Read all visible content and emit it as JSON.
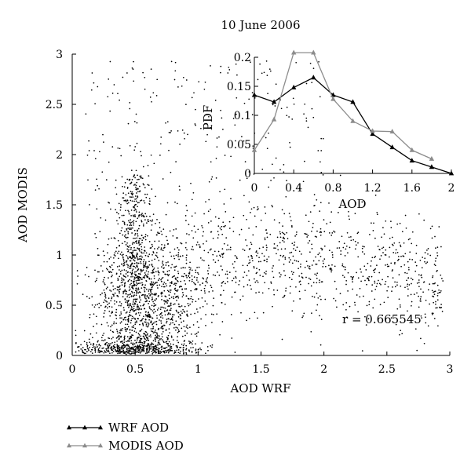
{
  "chart_data": [
    {
      "type": "scatter",
      "title": "10 June 2006",
      "xlabel": "AOD WRF",
      "ylabel": "AOD MODIS",
      "xlim": [
        0,
        3
      ],
      "ylim": [
        0,
        3
      ],
      "xticks": [
        "0",
        "0.5",
        "1",
        "1.5",
        "2",
        "2.5",
        "3"
      ],
      "yticks": [
        "0",
        "0.5",
        "1",
        "1.5",
        "2",
        "2.5",
        "3"
      ],
      "annotation": "r = 0.665545",
      "point_color": "#000000",
      "grid": false,
      "n_points": 3200,
      "density_note": "dense cloud near WRF 0.3-0.9 / MODIS 0-1.2; band along MODIS ~1 up to WRF 3"
    },
    {
      "type": "line",
      "inset": true,
      "xlabel": "AOD",
      "ylabel": "PDF",
      "xlim": [
        0,
        2
      ],
      "ylim": [
        0,
        0.2
      ],
      "xticks": [
        "0",
        "0.4",
        "0.8",
        "1.2",
        "1.6",
        "2"
      ],
      "yticks": [
        "0",
        "0.05",
        "0.1",
        "0.15",
        "0.2"
      ],
      "legend_position": "bottom-left",
      "series": [
        {
          "name": "WRF AOD",
          "color": "#000000",
          "x": [
            0,
            0.2,
            0.4,
            0.6,
            0.8,
            1.0,
            1.2,
            1.4,
            1.6,
            1.8,
            2.0
          ],
          "y": [
            0.135,
            0.123,
            0.148,
            0.165,
            0.135,
            0.123,
            0.068,
            0.045,
            0.022,
            0.011,
            0.0
          ]
        },
        {
          "name": "MODIS AOD",
          "color": "#8c8c8c",
          "x": [
            0,
            0.2,
            0.4,
            0.6,
            0.8,
            1.0,
            1.2,
            1.4,
            1.6,
            1.8
          ],
          "y": [
            0.04,
            0.093,
            0.208,
            0.208,
            0.128,
            0.09,
            0.073,
            0.072,
            0.04,
            0.025
          ]
        }
      ]
    }
  ]
}
